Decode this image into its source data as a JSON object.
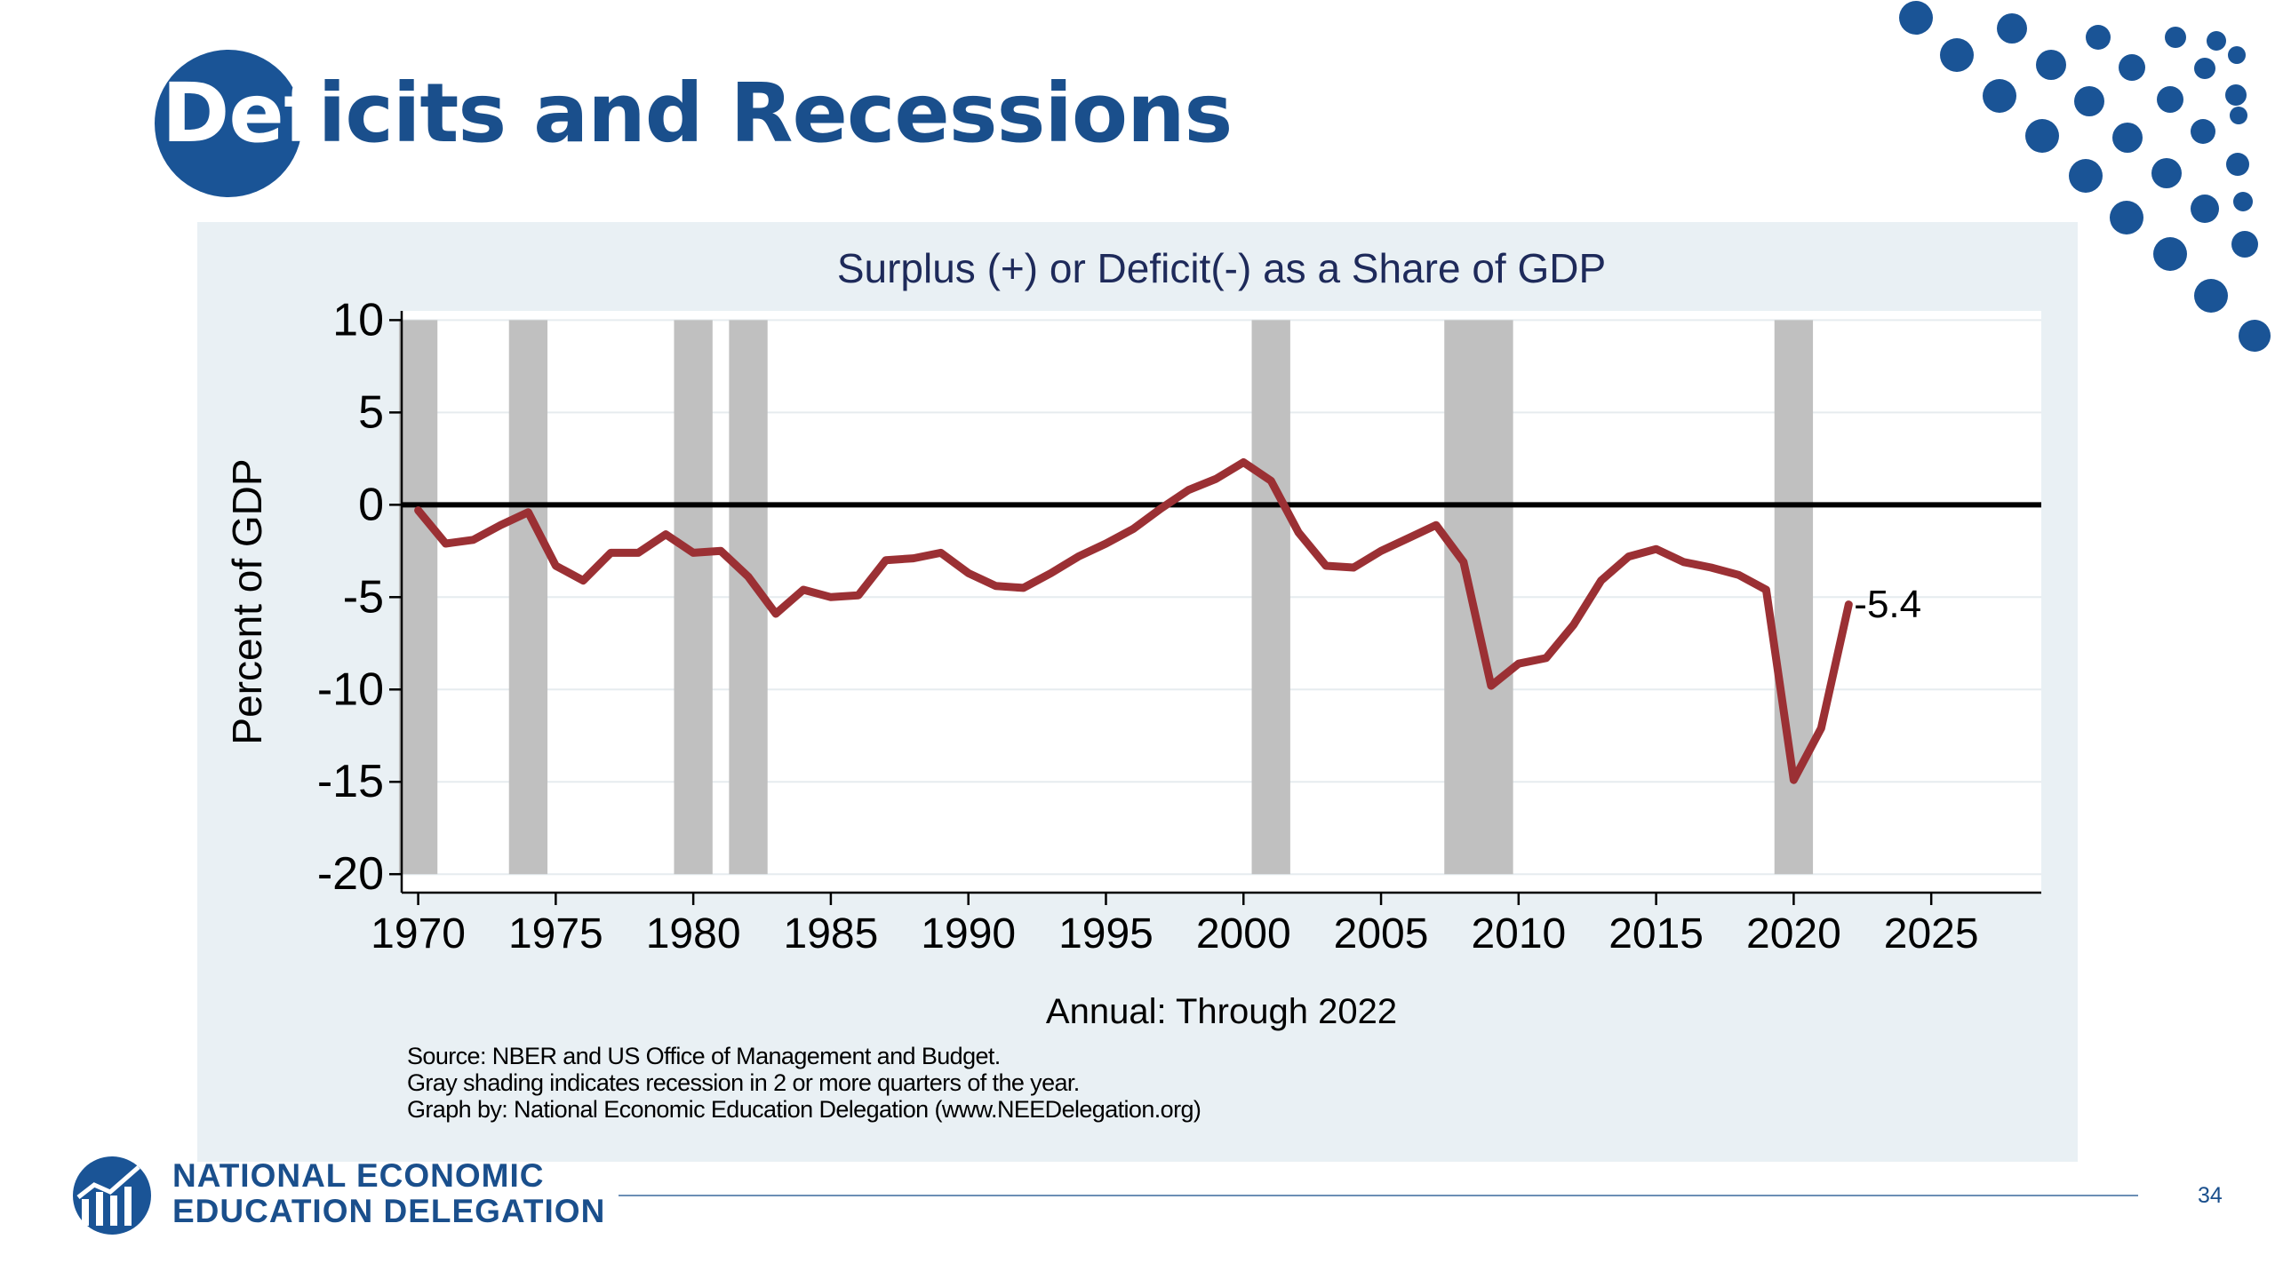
{
  "slide": {
    "title_lead": "Def",
    "title_rest": "icits and Recessions",
    "page_number": "34",
    "accent_color": "#1a5496",
    "panel_color": "#e9f0f4"
  },
  "organization": {
    "line1": "NATIONAL ECONOMIC",
    "line2": "EDUCATION DELEGATION",
    "logo_icon": "ned-logo-icon"
  },
  "source": {
    "line1": "Source: NBER and US Office of Management and Budget.",
    "line2": "Gray shading indicates recession in 2 or more quarters of the year.",
    "line3": "Graph by: National Economic Education Delegation (www.NEEDelegation.org)"
  },
  "chart_data": {
    "type": "line",
    "title": "Surplus (+) or Deficit(-) as a Share of GDP",
    "xlabel": "Annual: Through 2022",
    "ylabel": "Percent of GDP",
    "xlim": [
      1969.4,
      2029
    ],
    "ylim": [
      -21,
      10.5
    ],
    "x_ticks": [
      1970,
      1975,
      1980,
      1985,
      1990,
      1995,
      2000,
      2005,
      2010,
      2015,
      2020,
      2025
    ],
    "y_ticks": [
      10,
      5,
      0,
      -5,
      -10,
      -15,
      -20
    ],
    "grid": true,
    "line_color": "#9b3034",
    "shade_color": "#c0c0c0",
    "recession_shading": [
      [
        1969.3,
        1970.7
      ],
      [
        1973.3,
        1974.7
      ],
      [
        1979.3,
        1980.7
      ],
      [
        1981.3,
        1982.7
      ],
      [
        2000.3,
        2001.7
      ],
      [
        2007.3,
        2009.8
      ],
      [
        2019.3,
        2020.7
      ]
    ],
    "series": [
      {
        "x": [
          1970,
          1971,
          1972,
          1973,
          1974,
          1975,
          1976,
          1977,
          1978,
          1979,
          1980,
          1981,
          1982,
          1983,
          1984,
          1985,
          1986,
          1987,
          1988,
          1989,
          1990,
          1991,
          1992,
          1993,
          1994,
          1995,
          1996,
          1997,
          1998,
          1999,
          2000,
          2001,
          2002,
          2003,
          2004,
          2005,
          2006,
          2007,
          2008,
          2009,
          2010,
          2011,
          2012,
          2013,
          2014,
          2015,
          2016,
          2017,
          2018,
          2019,
          2020,
          2021,
          2022
        ],
        "y": [
          -0.3,
          -2.1,
          -1.9,
          -1.1,
          -0.4,
          -3.3,
          -4.1,
          -2.6,
          -2.6,
          -1.6,
          -2.6,
          -2.5,
          -3.9,
          -5.9,
          -4.6,
          -5.0,
          -4.9,
          -3.0,
          -2.9,
          -2.6,
          -3.7,
          -4.4,
          -4.5,
          -3.7,
          -2.8,
          -2.1,
          -1.3,
          -0.2,
          0.8,
          1.4,
          2.3,
          1.3,
          -1.5,
          -3.3,
          -3.4,
          -2.5,
          -1.8,
          -1.1,
          -3.1,
          -9.8,
          -8.6,
          -8.3,
          -6.5,
          -4.1,
          -2.8,
          -2.4,
          -3.1,
          -3.4,
          -3.8,
          -4.6,
          -14.9,
          -12.1,
          -5.4
        ]
      }
    ],
    "annotations": [
      {
        "x": 2022,
        "y": -5.4,
        "text": "-5.4"
      }
    ]
  }
}
